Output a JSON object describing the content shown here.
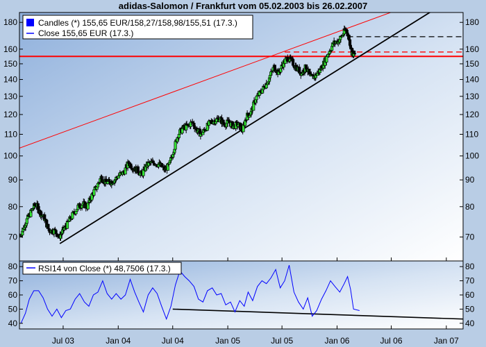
{
  "title": "adidas-Salomon / Frankfurt vom 05.02.2003 bis 26.02.2007",
  "chart_data": [
    {
      "type": "candlestick",
      "panel": "price",
      "legend_position": "top-left",
      "legend": [
        {
          "name": "Candles (*) 155,65 EUR/158,27/158,98/155,51 (17.3.)",
          "symbol": "square",
          "color": "#0000ff"
        },
        {
          "name": "Close 155,65 EUR (17.3.)",
          "symbol": "line",
          "color": "#0000ff"
        }
      ],
      "y_scale": "log",
      "ylim": [
        63,
        188
      ],
      "yticks": [
        70,
        80,
        90,
        100,
        110,
        120,
        130,
        140,
        150,
        160,
        180
      ],
      "ytick_labels": [
        "70",
        "80",
        "90",
        "100",
        "110",
        "120",
        "130",
        "140",
        "150",
        "160",
        "180"
      ],
      "xlim": [
        "2003-02-05",
        "2007-02-26"
      ],
      "xticks": [
        "2003-07-01",
        "2004-01-01",
        "2004-07-01",
        "2005-01-01",
        "2005-07-01",
        "2006-01-01",
        "2006-07-01",
        "2007-01-01"
      ],
      "xtick_labels": [
        "Jul 03",
        "Jan 04",
        "Jul 04",
        "Jan 05",
        "Jul 05",
        "Jan 06",
        "Jul 06",
        "Jan 07"
      ],
      "grid": false,
      "up_color": "#33dd33",
      "down_color": "#000000",
      "close_series": [
        [
          "2003-02-05",
          70
        ],
        [
          "2003-02-20",
          73
        ],
        [
          "2003-03-05",
          76
        ],
        [
          "2003-03-20",
          79
        ],
        [
          "2003-04-01",
          81
        ],
        [
          "2003-04-15",
          78
        ],
        [
          "2003-04-30",
          76
        ],
        [
          "2003-05-15",
          72
        ],
        [
          "2003-06-01",
          72
        ],
        [
          "2003-06-20",
          70
        ],
        [
          "2003-07-01",
          72
        ],
        [
          "2003-07-15",
          74
        ],
        [
          "2003-08-01",
          77
        ],
        [
          "2003-08-20",
          80
        ],
        [
          "2003-09-05",
          81
        ],
        [
          "2003-09-20",
          80
        ],
        [
          "2003-10-05",
          84
        ],
        [
          "2003-10-20",
          87
        ],
        [
          "2003-11-05",
          91
        ],
        [
          "2003-11-20",
          89
        ],
        [
          "2003-12-05",
          89
        ],
        [
          "2003-12-20",
          90
        ],
        [
          "2004-01-05",
          92
        ],
        [
          "2004-01-20",
          93
        ],
        [
          "2004-02-05",
          97
        ],
        [
          "2004-02-20",
          95
        ],
        [
          "2004-03-05",
          94
        ],
        [
          "2004-03-20",
          92
        ],
        [
          "2004-04-05",
          96
        ],
        [
          "2004-04-20",
          97
        ],
        [
          "2004-05-05",
          97
        ],
        [
          "2004-05-20",
          96
        ],
        [
          "2004-06-05",
          94
        ],
        [
          "2004-06-20",
          96
        ],
        [
          "2004-07-05",
          103
        ],
        [
          "2004-07-20",
          110
        ],
        [
          "2004-08-05",
          113
        ],
        [
          "2004-08-20",
          114
        ],
        [
          "2004-09-05",
          116
        ],
        [
          "2004-09-20",
          112
        ],
        [
          "2004-10-05",
          110
        ],
        [
          "2004-10-20",
          113
        ],
        [
          "2004-11-05",
          116
        ],
        [
          "2004-11-20",
          117
        ],
        [
          "2004-12-05",
          118
        ],
        [
          "2004-12-20",
          115
        ],
        [
          "2005-01-05",
          116
        ],
        [
          "2005-01-20",
          114
        ],
        [
          "2005-02-05",
          115
        ],
        [
          "2005-02-20",
          112
        ],
        [
          "2005-03-05",
          119
        ],
        [
          "2005-03-20",
          121
        ],
        [
          "2005-04-05",
          129
        ],
        [
          "2005-04-20",
          132
        ],
        [
          "2005-05-05",
          136
        ],
        [
          "2005-05-20",
          141
        ],
        [
          "2005-06-05",
          148
        ],
        [
          "2005-06-20",
          144
        ],
        [
          "2005-07-05",
          150
        ],
        [
          "2005-07-20",
          154
        ],
        [
          "2005-08-05",
          151
        ],
        [
          "2005-08-20",
          147
        ],
        [
          "2005-09-05",
          144
        ],
        [
          "2005-09-20",
          148
        ],
        [
          "2005-10-05",
          141
        ],
        [
          "2005-10-20",
          142
        ],
        [
          "2005-11-05",
          146
        ],
        [
          "2005-11-20",
          151
        ],
        [
          "2005-12-05",
          158
        ],
        [
          "2005-12-20",
          164
        ],
        [
          "2006-01-05",
          166
        ],
        [
          "2006-01-20",
          170
        ],
        [
          "2006-01-31",
          175
        ],
        [
          "2006-02-10",
          168
        ],
        [
          "2006-02-20",
          158
        ],
        [
          "2006-03-01",
          156
        ]
      ],
      "annotations": [
        {
          "type": "horizontal_line",
          "y": 155,
          "color": "#ff0000",
          "style": "solid",
          "width": "thick"
        },
        {
          "type": "horizontal_line",
          "y": 169,
          "x_start": "2006-02-05",
          "color": "#000000",
          "style": "dashed"
        },
        {
          "type": "horizontal_line",
          "y": 158,
          "x_start": "2005-07-10",
          "color": "#ff0000",
          "style": "dashed"
        },
        {
          "type": "trend_line",
          "points": [
            [
              "2003-06-20",
              68
            ],
            [
              "2006-03-17",
              155
            ]
          ],
          "extend": "right",
          "color": "#000000"
        },
        {
          "type": "trend_line",
          "points": [
            [
              "2003-02-05",
              103.5
            ],
            [
              "2006-01-31",
              175
            ]
          ],
          "extend": "right",
          "color": "#ff0000"
        }
      ]
    },
    {
      "type": "line",
      "panel": "indicator",
      "legend_position": "top-left",
      "series": [
        {
          "name": "RSI14 von Close (*) 48,7506 (17.3.)",
          "color": "#0000ff",
          "points": [
            [
              "2003-02-10",
              40
            ],
            [
              "2003-02-25",
              47
            ],
            [
              "2003-03-10",
              57
            ],
            [
              "2003-03-25",
              63
            ],
            [
              "2003-04-10",
              63
            ],
            [
              "2003-04-25",
              58
            ],
            [
              "2003-05-10",
              50
            ],
            [
              "2003-05-25",
              45
            ],
            [
              "2003-06-10",
              50
            ],
            [
              "2003-06-25",
              44
            ],
            [
              "2003-07-10",
              49
            ],
            [
              "2003-07-25",
              50
            ],
            [
              "2003-08-10",
              57
            ],
            [
              "2003-08-25",
              61
            ],
            [
              "2003-09-10",
              55
            ],
            [
              "2003-09-25",
              52
            ],
            [
              "2003-10-10",
              60
            ],
            [
              "2003-10-25",
              62
            ],
            [
              "2003-11-10",
              70
            ],
            [
              "2003-11-25",
              61
            ],
            [
              "2003-12-10",
              57
            ],
            [
              "2003-12-25",
              61
            ],
            [
              "2004-01-10",
              57
            ],
            [
              "2004-01-25",
              60
            ],
            [
              "2004-02-10",
              71
            ],
            [
              "2004-02-25",
              62
            ],
            [
              "2004-03-10",
              55
            ],
            [
              "2004-03-25",
              48
            ],
            [
              "2004-04-10",
              60
            ],
            [
              "2004-04-25",
              65
            ],
            [
              "2004-05-10",
              61
            ],
            [
              "2004-05-25",
              52
            ],
            [
              "2004-06-10",
              43
            ],
            [
              "2004-06-25",
              52
            ],
            [
              "2004-07-10",
              67
            ],
            [
              "2004-07-25",
              77
            ],
            [
              "2004-08-10",
              73
            ],
            [
              "2004-08-25",
              70
            ],
            [
              "2004-09-10",
              66
            ],
            [
              "2004-09-25",
              57
            ],
            [
              "2004-10-10",
              55
            ],
            [
              "2004-10-25",
              63
            ],
            [
              "2004-11-10",
              65
            ],
            [
              "2004-11-25",
              60
            ],
            [
              "2004-12-10",
              61
            ],
            [
              "2004-12-25",
              53
            ],
            [
              "2005-01-10",
              55
            ],
            [
              "2005-01-25",
              48
            ],
            [
              "2005-02-10",
              56
            ],
            [
              "2005-02-25",
              52
            ],
            [
              "2005-03-10",
              62
            ],
            [
              "2005-03-25",
              56
            ],
            [
              "2005-04-10",
              66
            ],
            [
              "2005-04-25",
              70
            ],
            [
              "2005-05-10",
              68
            ],
            [
              "2005-05-25",
              72
            ],
            [
              "2005-06-10",
              78
            ],
            [
              "2005-06-25",
              65
            ],
            [
              "2005-07-10",
              70
            ],
            [
              "2005-07-25",
              81
            ],
            [
              "2005-08-10",
              62
            ],
            [
              "2005-08-25",
              55
            ],
            [
              "2005-09-10",
              50
            ],
            [
              "2005-09-25",
              58
            ],
            [
              "2005-10-10",
              45
            ],
            [
              "2005-10-25",
              49
            ],
            [
              "2005-11-10",
              57
            ],
            [
              "2005-11-25",
              63
            ],
            [
              "2005-12-10",
              70
            ],
            [
              "2005-12-25",
              66
            ],
            [
              "2006-01-10",
              62
            ],
            [
              "2006-01-25",
              68
            ],
            [
              "2006-02-05",
              73
            ],
            [
              "2006-02-15",
              64
            ],
            [
              "2006-02-25",
              50
            ],
            [
              "2006-03-17",
              49
            ]
          ]
        }
      ],
      "ylim": [
        36,
        84
      ],
      "yticks": [
        40,
        50,
        60,
        70,
        80
      ],
      "ytick_labels": [
        "40",
        "50",
        "60",
        "70",
        "80"
      ],
      "grid": false,
      "annotations": [
        {
          "type": "trend_line",
          "points": [
            [
              "2004-07-01",
              50
            ],
            [
              "2007-02-26",
              43
            ]
          ],
          "color": "#000000"
        }
      ]
    }
  ]
}
